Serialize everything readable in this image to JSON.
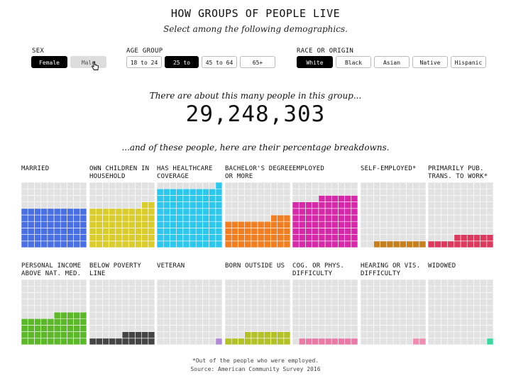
{
  "title": "HOW GROUPS OF PEOPLE LIVE",
  "subtitle": "Select among the following demographics.",
  "filters": {
    "sex": {
      "label": "SEX",
      "options": [
        "Female",
        "Male"
      ],
      "selected": "Female",
      "hovered": "Male"
    },
    "age": {
      "label": "AGE GROUP",
      "options": [
        "18 to 24",
        "25 to 44",
        "45 to 64",
        "65+"
      ],
      "selected": "25 to 44"
    },
    "race": {
      "label": "RACE OR ORIGIN",
      "options": [
        "White",
        "Black",
        "Asian",
        "Native",
        "Hispanic"
      ],
      "selected": "White"
    }
  },
  "intro": "There are about this many people in this group...",
  "count": "29,248,303",
  "breakdown_intro": "...and of these people, here are their percentage breakdowns.",
  "panels": [
    {
      "label": "MARRIED",
      "percent": 60,
      "color": "#4a6fe0"
    },
    {
      "label": "OWN CHILDREN IN HOUSEHOLD",
      "percent": 62,
      "color": "#d9cc2e"
    },
    {
      "label": "HAS HEALTHCARE COVERAGE",
      "percent": 91,
      "color": "#2fc6ec"
    },
    {
      "label": "BACHELOR'S DEGREE OR MORE",
      "percent": 43,
      "color": "#f07f24"
    },
    {
      "label": "EMPLOYED",
      "percent": 76,
      "color": "#d42aa8"
    },
    {
      "label": "SELF-EMPLOYED*",
      "percent": 8,
      "color": "#c47f20"
    },
    {
      "label": "PRIMARILY PUB. TRANS. TO WORK*",
      "percent": 16,
      "color": "#d93a5e"
    },
    {
      "label": "PERSONAL INCOME ABOVE NAT. MED.",
      "percent": 45,
      "color": "#5cb82a"
    },
    {
      "label": "BELOW POVERTY LINE",
      "percent": 15,
      "color": "#444444"
    },
    {
      "label": "VETERAN",
      "percent": 1,
      "color": "#b08ad6"
    },
    {
      "label": "BORN OUTSIDE US",
      "percent": 17,
      "color": "#b3c02a"
    },
    {
      "label": "COG. OR PHYS. DIFFICULTY",
      "percent": 9,
      "color": "#e87aa6"
    },
    {
      "label": "HEARING OR VIS. DIFFICULTY",
      "percent": 2,
      "color": "#ec8fb0"
    },
    {
      "label": "WIDOWED",
      "percent": 1,
      "color": "#3ed69e"
    }
  ],
  "footnote": "*Out of the people who were employed.",
  "source": "Source: American Community Survey 2016"
}
